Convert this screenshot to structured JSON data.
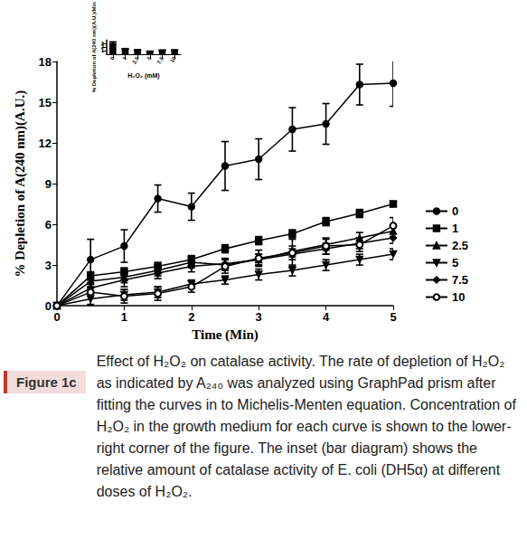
{
  "chart_data": [
    {
      "type": "line",
      "x_label": "Time (Min)",
      "y_label": "% Depletion of A(240 nm)(A.U.)",
      "x": [
        0,
        0.5,
        1,
        1.5,
        2,
        2.5,
        3,
        3.5,
        4,
        4.5,
        5
      ],
      "xlim": [
        0,
        5
      ],
      "xticks": [
        0,
        1,
        2,
        3,
        4,
        5
      ],
      "ylim": [
        0,
        18
      ],
      "yticks": [
        0,
        3,
        6,
        9,
        12,
        15,
        18
      ],
      "grid": false,
      "legend": "right",
      "series": [
        {
          "name": "0",
          "color": "#000000",
          "marker": "circle",
          "values": [
            0,
            3.4,
            4.4,
            7.9,
            7.3,
            10.3,
            10.8,
            13.0,
            13.4,
            16.3,
            16.4
          ],
          "errors": [
            0,
            1.5,
            1.2,
            1.0,
            1.0,
            1.8,
            1.5,
            1.6,
            1.5,
            1.5,
            1.7
          ]
        },
        {
          "name": "1",
          "color": "#000000",
          "marker": "square",
          "values": [
            0,
            2.2,
            2.5,
            2.9,
            3.4,
            4.2,
            4.8,
            5.3,
            6.2,
            6.8,
            7.5
          ],
          "errors": [
            0,
            0.3,
            0.3,
            0.3,
            0.3,
            0.3,
            0.3,
            0.3,
            0.3,
            0.3,
            0.2
          ]
        },
        {
          "name": "2.5",
          "color": "#000000",
          "marker": "triangle",
          "values": [
            0,
            1.8,
            2.1,
            2.6,
            3.2,
            3.0,
            3.4,
            4.0,
            4.5,
            5.0,
            5.5
          ],
          "errors": [
            0,
            0.4,
            0.4,
            0.4,
            0.4,
            0.4,
            0.4,
            0.4,
            0.4,
            0.4,
            0.4
          ]
        },
        {
          "name": "5",
          "color": "#000000",
          "marker": "triangle-down",
          "values": [
            0,
            0.5,
            0.8,
            1.0,
            1.6,
            1.9,
            2.3,
            2.6,
            3.0,
            3.4,
            3.8
          ],
          "errors": [
            0,
            0.4,
            0.4,
            0.4,
            0.3,
            0.3,
            0.4,
            0.4,
            0.4,
            0.4,
            0.4
          ]
        },
        {
          "name": "7.5",
          "color": "#000000",
          "marker": "diamond",
          "values": [
            0,
            1.3,
            1.9,
            2.4,
            2.9,
            3.1,
            3.4,
            3.8,
            4.2,
            4.6,
            5.0
          ],
          "errors": [
            0,
            0.4,
            0.5,
            0.4,
            0.4,
            0.4,
            0.4,
            0.4,
            0.4,
            0.4,
            0.4
          ]
        },
        {
          "name": "10",
          "color": "#000000",
          "marker": "circle-open",
          "values": [
            0,
            1.0,
            0.7,
            0.9,
            1.4,
            2.9,
            3.5,
            3.9,
            4.4,
            4.5,
            5.9
          ],
          "errors": [
            0,
            1.0,
            0.5,
            0.5,
            0.4,
            0.5,
            0.6,
            1.0,
            0.6,
            0.5,
            0.6
          ]
        }
      ]
    },
    {
      "type": "bar",
      "x_label": "H₂O₂ (mM)",
      "y_label": "% Depletion of A(240 nm)(A.U.)/Min",
      "categories": [
        "0",
        "1",
        "2.5",
        "5",
        "7.5",
        "10"
      ],
      "values": [
        3.2,
        1.55,
        1.2,
        0.8,
        1.15,
        1.2
      ],
      "errors": [
        0.3,
        0.05,
        0.12,
        0.08,
        0.03,
        0.05
      ],
      "color": "#000000",
      "ylim": [
        0,
        4
      ],
      "yticks": [
        0,
        1,
        2,
        3,
        4
      ],
      "grid": false
    }
  ],
  "caption": {
    "label": "Figure 1c",
    "text": "Effect of H₂O₂ on catalase activity. The rate of depletion of H₂O₂ as indicated by A₂₄₀ was analyzed using GraphPad prism after fitting the curves in to Michelis-Menten equation. Concentration of H₂O₂ in the growth medium for each curve is shown to the lower-right corner of the figure. The inset (bar diagram) shows the relative amount of catalase activity of E. coli (DH5α) at different doses of H₂O₂."
  }
}
